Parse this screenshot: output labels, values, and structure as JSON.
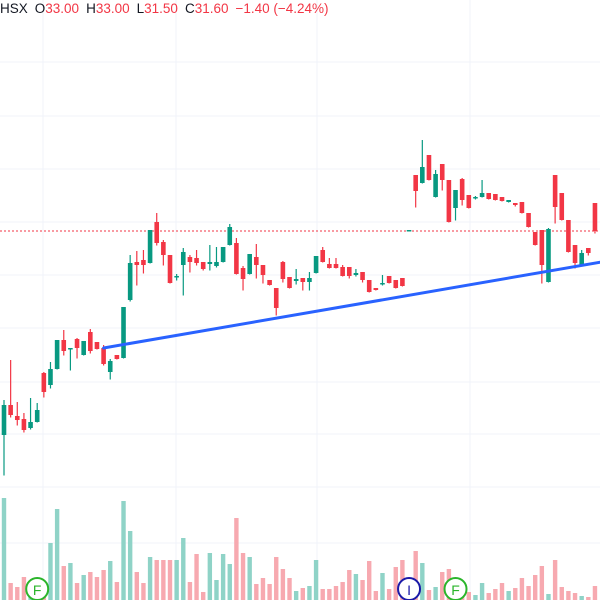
{
  "legend": {
    "exchange": "HSX",
    "open_label": "O",
    "open": "33.00",
    "high_label": "H",
    "high": "33.00",
    "low_label": "L",
    "low": "31.50",
    "close_label": "C",
    "close": "31.60",
    "change": "−1.40 (−4.24%)"
  },
  "colors": {
    "up": "#089981",
    "down": "#f23645",
    "up_volume": "#8fd3c7",
    "down_volume": "#f7a9b0",
    "trendline": "#2962ff",
    "grid": "#f0f3fa",
    "event_earnings": "#2bb52b",
    "event_dividend": "#1a1aa8"
  },
  "chart_data": {
    "type": "candlestick",
    "last_price": 31.6,
    "candles": [
      [
        21.4,
        23.15,
        19.4,
        22.9
      ],
      [
        22.9,
        25.15,
        22.3,
        22.4
      ],
      [
        22.35,
        23.05,
        21.9,
        22.15
      ],
      [
        22.2,
        22.5,
        21.55,
        21.65
      ],
      [
        21.75,
        23.25,
        21.7,
        22.05
      ],
      [
        22.05,
        23.0,
        22.05,
        22.65
      ],
      [
        24.5,
        24.55,
        23.3,
        23.55
      ],
      [
        23.9,
        25.05,
        23.75,
        24.7
      ],
      [
        24.7,
        26.15,
        24.7,
        26.15
      ],
      [
        26.15,
        26.65,
        25.4,
        25.6
      ],
      [
        25.7,
        25.75,
        24.65,
        25.75
      ],
      [
        26.2,
        26.25,
        25.25,
        25.75
      ],
      [
        25.4,
        26.1,
        25.4,
        26.1
      ],
      [
        26.55,
        26.7,
        25.5,
        25.6
      ],
      [
        26.05,
        26.05,
        25.7,
        25.7
      ],
      [
        25.75,
        25.9,
        24.9,
        24.95
      ],
      [
        24.55,
        25.2,
        24.2,
        25.1
      ],
      [
        25.4,
        25.4,
        25.2,
        25.2
      ],
      [
        25.25,
        27.8,
        25.25,
        27.8
      ],
      [
        28.15,
        30.4,
        28.1,
        30.0
      ],
      [
        30.05,
        30.6,
        28.9,
        29.9
      ],
      [
        30.15,
        30.65,
        29.5,
        29.9
      ],
      [
        30.0,
        31.65,
        30.0,
        31.65
      ],
      [
        32.05,
        32.5,
        30.9,
        31.0
      ],
      [
        31.05,
        31.15,
        29.9,
        30.4
      ],
      [
        30.4,
        30.4,
        29.0,
        29.0
      ],
      [
        29.3,
        29.45,
        29.15,
        29.35
      ],
      [
        29.9,
        30.75,
        28.4,
        30.55
      ],
      [
        30.3,
        30.4,
        29.55,
        30.05
      ],
      [
        30.25,
        30.65,
        29.9,
        30.0
      ],
      [
        30.05,
        30.05,
        29.65,
        29.7
      ],
      [
        29.95,
        30.9,
        29.65,
        30.05
      ],
      [
        29.85,
        30.8,
        29.8,
        30.05
      ],
      [
        30.05,
        30.8,
        30.05,
        30.8
      ],
      [
        30.9,
        31.95,
        30.9,
        31.8
      ],
      [
        31.0,
        31.25,
        29.45,
        29.45
      ],
      [
        29.75,
        29.85,
        28.65,
        29.2
      ],
      [
        29.45,
        30.45,
        29.45,
        30.45
      ],
      [
        30.3,
        30.95,
        29.25,
        29.9
      ],
      [
        29.9,
        29.9,
        29.0,
        29.4
      ],
      [
        29.15,
        29.15,
        28.9,
        28.9
      ],
      [
        28.75,
        28.75,
        27.4,
        27.75
      ],
      [
        30.05,
        30.1,
        29.05,
        29.2
      ],
      [
        29.3,
        29.3,
        28.75,
        28.75
      ],
      [
        29.1,
        29.7,
        28.95,
        29.2
      ],
      [
        29.25,
        29.25,
        28.65,
        29.05
      ],
      [
        29.05,
        29.55,
        28.65,
        29.25
      ],
      [
        29.5,
        30.35,
        29.5,
        30.35
      ],
      [
        30.65,
        30.8,
        30.05,
        30.05
      ],
      [
        29.95,
        30.25,
        29.75,
        29.75
      ],
      [
        29.95,
        30.25,
        29.75,
        29.75
      ],
      [
        29.8,
        29.9,
        29.35,
        29.35
      ],
      [
        29.8,
        29.8,
        29.25,
        29.35
      ],
      [
        29.4,
        29.7,
        29.35,
        29.5
      ],
      [
        29.55,
        29.55,
        29.05,
        29.15
      ],
      [
        29.15,
        29.15,
        28.55,
        28.55
      ],
      [
        28.75,
        28.75,
        28.65,
        28.65
      ],
      [
        28.95,
        29.4,
        28.9,
        29.0
      ],
      [
        29.35,
        29.35,
        29.0,
        29.0
      ],
      [
        29.15,
        29.15,
        28.75,
        28.75
      ],
      [
        29.25,
        29.25,
        28.85,
        28.85
      ],
      [
        31.65,
        31.65,
        31.65,
        31.65
      ],
      [
        34.4,
        34.4,
        32.8,
        33.6
      ],
      [
        34.0,
        36.15,
        34.0,
        34.8
      ],
      [
        35.4,
        35.4,
        34.15,
        34.15
      ],
      [
        33.3,
        34.65,
        33.3,
        34.45
      ],
      [
        34.95,
        34.95,
        33.65,
        34.15
      ],
      [
        34.15,
        34.15,
        32.05,
        32.05
      ],
      [
        32.75,
        33.65,
        32.15,
        33.65
      ],
      [
        34.2,
        34.25,
        32.9,
        33.15
      ],
      [
        33.4,
        33.4,
        32.75,
        32.75
      ],
      [
        33.25,
        33.35,
        33.2,
        33.3
      ],
      [
        33.3,
        34.15,
        33.3,
        33.5
      ],
      [
        33.5,
        33.5,
        33.2,
        33.2
      ],
      [
        33.45,
        33.45,
        33.15,
        33.15
      ],
      [
        33.3,
        33.3,
        33.1,
        33.1
      ],
      [
        33.05,
        33.15,
        33.05,
        33.15
      ],
      [
        33.0,
        33.0,
        32.85,
        32.9
      ],
      [
        33.05,
        33.05,
        32.5,
        32.5
      ],
      [
        32.5,
        32.5,
        31.8,
        31.8
      ],
      [
        31.55,
        31.55,
        30.9,
        30.9
      ],
      [
        31.65,
        31.65,
        29.0,
        29.9
      ],
      [
        29.05,
        31.75,
        29.05,
        31.7
      ],
      [
        34.4,
        34.4,
        32.0,
        32.8
      ],
      [
        33.5,
        33.5,
        32.15,
        32.15
      ],
      [
        32.15,
        32.15,
        30.55,
        30.55
      ],
      [
        30.9,
        30.9,
        29.75,
        30.0
      ],
      [
        29.9,
        30.65,
        29.9,
        30.5
      ],
      [
        30.75,
        30.75,
        30.4,
        30.5
      ],
      [
        33.0,
        33.0,
        31.5,
        31.6
      ]
    ],
    "volume": [
      102,
      17,
      13,
      23,
      15,
      20,
      18,
      57,
      91,
      34,
      37,
      17,
      25,
      28,
      23,
      30,
      39,
      18,
      99,
      69,
      28,
      17,
      43,
      40,
      40,
      40,
      40,
      62,
      18,
      46,
      8,
      47,
      20,
      46,
      36,
      82,
      47,
      43,
      16,
      22,
      16,
      43,
      31,
      22,
      9,
      12,
      14,
      40,
      11,
      11,
      14,
      18,
      30,
      26,
      20,
      39,
      9,
      27,
      11,
      33,
      40,
      20,
      49,
      37,
      10,
      13,
      28,
      31,
      15,
      12,
      8,
      5,
      17,
      7,
      11,
      17,
      9,
      12,
      22,
      14,
      25,
      34,
      6,
      40,
      13,
      9,
      7,
      4,
      3,
      14
    ],
    "trendline": {
      "from": {
        "bar": 16,
        "price": 25.75
      },
      "to": {
        "bar": 91,
        "price": 30.05
      }
    },
    "events": [
      {
        "bar": 6,
        "label": "F",
        "kind": "earnings"
      },
      {
        "bar": 62,
        "label": "I",
        "kind": "dividend"
      },
      {
        "bar": 69,
        "label": "F",
        "kind": "earnings"
      }
    ]
  }
}
